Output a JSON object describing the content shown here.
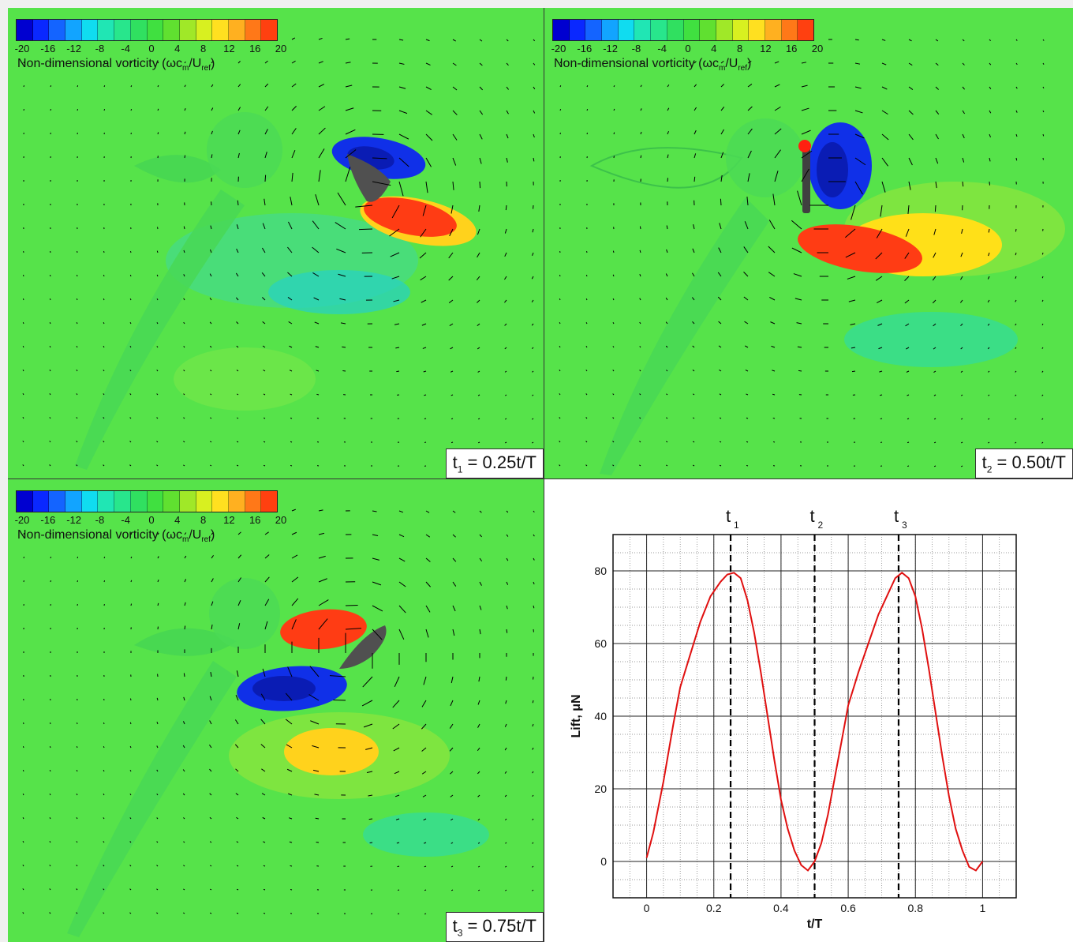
{
  "colorbar": {
    "ticks": [
      "-20",
      "-16",
      "-12",
      "-8",
      "-4",
      "0",
      "4",
      "8",
      "12",
      "16",
      "20"
    ],
    "title": "Non-dimensional vorticity (ωcm/Uref)",
    "colors": [
      "#0000d0",
      "#0a28ff",
      "#1464ff",
      "#12a4ff",
      "#10dcf0",
      "#20e6b4",
      "#28e68c",
      "#30e060",
      "#40e040",
      "#60e030",
      "#a0e828",
      "#d8f020",
      "#ffe020",
      "#ffb020",
      "#ff7818",
      "#ff4010"
    ]
  },
  "panels": [
    {
      "id": "p1",
      "label": "t1 = 0.25t/T",
      "label_main": "t",
      "label_sub": "1",
      "label_rest": " = 0.25t/T"
    },
    {
      "id": "p2",
      "label": "t2 = 0.50t/T",
      "label_main": "t",
      "label_sub": "2",
      "label_rest": " = 0.50t/T"
    },
    {
      "id": "p3",
      "label": "t3 = 0.75t/T",
      "label_main": "t",
      "label_sub": "3",
      "label_rest": " = 0.75t/T"
    }
  ],
  "chart_data": {
    "type": "line",
    "xlabel": "t/T",
    "ylabel": "Lift, μN",
    "xlim": [
      -0.1,
      1.1
    ],
    "ylim": [
      -10,
      90
    ],
    "xticks": [
      "0",
      "0.2",
      "0.4",
      "0.6",
      "0.8",
      "1"
    ],
    "yticks": [
      "0",
      "20",
      "40",
      "60",
      "80"
    ],
    "grid": true,
    "series": [
      {
        "color": "#e01010",
        "x": [
          0.0,
          0.02,
          0.05,
          0.08,
          0.1,
          0.13,
          0.16,
          0.19,
          0.22,
          0.24,
          0.26,
          0.28,
          0.3,
          0.32,
          0.34,
          0.36,
          0.38,
          0.4,
          0.42,
          0.44,
          0.46,
          0.48,
          0.5,
          0.52,
          0.54,
          0.56,
          0.58,
          0.6,
          0.63,
          0.66,
          0.69,
          0.72,
          0.74,
          0.76,
          0.78,
          0.8,
          0.82,
          0.84,
          0.86,
          0.88,
          0.9,
          0.92,
          0.94,
          0.96,
          0.98,
          1.0
        ],
        "y": [
          1,
          8,
          22,
          38,
          48,
          57,
          66,
          73,
          77,
          79,
          79.5,
          78,
          72,
          63,
          52,
          40,
          28,
          17,
          9,
          3,
          -1,
          -2.5,
          0,
          5,
          13,
          23,
          33,
          43,
          52,
          60,
          68,
          74,
          78,
          79.5,
          78,
          73,
          64,
          53,
          41,
          29,
          18,
          9,
          3,
          -1.5,
          -2.5,
          0
        ]
      }
    ],
    "markers": [
      {
        "label": "t1",
        "label_main": "t",
        "label_sub": "1",
        "x": 0.25
      },
      {
        "label": "t2",
        "label_main": "t",
        "label_sub": "2",
        "x": 0.5
      },
      {
        "label": "t3",
        "label_main": "t",
        "label_sub": "3",
        "x": 0.75
      }
    ]
  }
}
